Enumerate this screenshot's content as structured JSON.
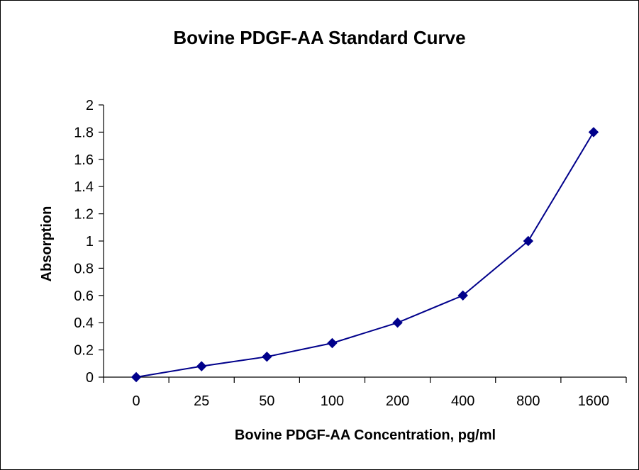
{
  "chart_data": {
    "type": "line",
    "title": "Bovine PDGF-AA Standard Curve",
    "xlabel": "Bovine PDGF-AA Concentration, pg/ml",
    "ylabel": "Absorption",
    "categories": [
      "0",
      "25",
      "50",
      "100",
      "200",
      "400",
      "800",
      "1600"
    ],
    "series": [
      {
        "values": [
          0.0,
          0.08,
          0.15,
          0.25,
          0.4,
          0.6,
          1.0,
          1.8
        ]
      }
    ],
    "ylim": [
      0,
      2
    ],
    "yticks": [
      "0",
      "0.2",
      "0.4",
      "0.6",
      "0.8",
      "1",
      "1.2",
      "1.4",
      "1.6",
      "1.8",
      "2"
    ],
    "grid": false,
    "legend": "none",
    "marker": "diamond",
    "line_color": "#00008B"
  }
}
